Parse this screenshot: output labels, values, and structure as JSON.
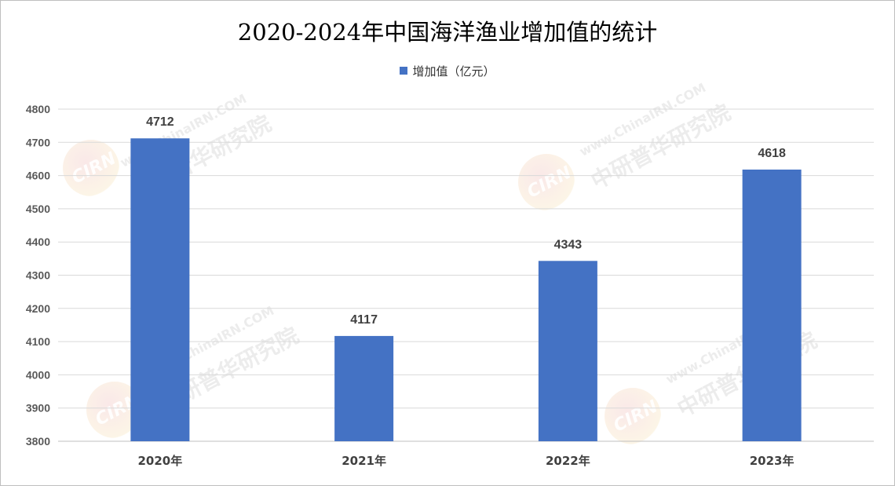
{
  "chart_data": {
    "type": "bar",
    "title": "2020-2024年中国海洋渔业增加值的统计",
    "categories": [
      "2020年",
      "2021年",
      "2022年",
      "2023年"
    ],
    "series": [
      {
        "name": "增加值（亿元）",
        "values": [
          4712,
          4117,
          4343,
          4618
        ],
        "color": "#4472C4"
      }
    ],
    "data_labels": [
      "4712",
      "4117",
      "4343",
      "4618"
    ],
    "ylim": [
      3800,
      4800
    ],
    "yticks": [
      3800,
      3900,
      4000,
      4100,
      4200,
      4300,
      4400,
      4500,
      4600,
      4700,
      4800
    ],
    "grid": true,
    "legend_position": "top"
  },
  "watermark": {
    "site": "www.ChinaIRN.COM",
    "org": "中研普华研究院",
    "logo": "CIRN"
  }
}
